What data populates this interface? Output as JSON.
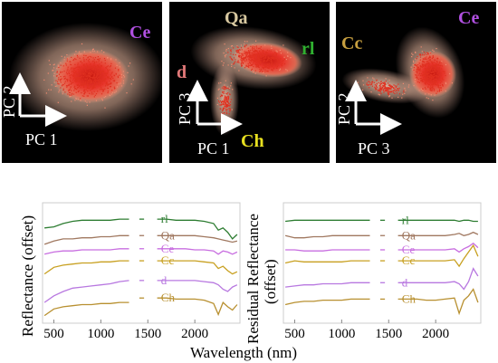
{
  "colors": {
    "rl": "#2e7d32",
    "Qa": "#a07860",
    "Ce": "#c86ee0",
    "Cc": "#c8a020",
    "d": "#b878e0",
    "Ch": "#b89030",
    "scatter_core": "#e8342a",
    "scatter_halo": "#f4c8b0",
    "panel_bg": "#000000",
    "axis_arrow": "#ffffff",
    "label_Ce": "#b050e0",
    "label_Qa": "#d8c8a0",
    "label_rl": "#30b030",
    "label_d": "#e07878",
    "label_Ch": "#e8e020",
    "label_Cc": "#c8a040"
  },
  "scatter_panels": [
    {
      "x_axis_label": "PC 1",
      "y_axis_label": "PC 2",
      "class_labels": [
        {
          "text": "Ce",
          "color_key": "label_Ce"
        }
      ]
    },
    {
      "x_axis_label": "PC 1",
      "y_axis_label": "PC 3",
      "class_labels": [
        {
          "text": "Qa",
          "color_key": "label_Qa"
        },
        {
          "text": "rl",
          "color_key": "label_rl"
        },
        {
          "text": "d",
          "color_key": "label_d"
        },
        {
          "text": "Ch",
          "color_key": "label_Ch"
        }
      ]
    },
    {
      "x_axis_label": "PC 3",
      "y_axis_label": "PC 2",
      "class_labels": [
        {
          "text": "Ce",
          "color_key": "label_Ce"
        },
        {
          "text": "Cc",
          "color_key": "label_Cc"
        }
      ]
    }
  ],
  "chart_data": [
    {
      "type": "line",
      "ylabel": "Reflectance (offset)",
      "xlabel": "Wavelength (nm)",
      "x_ticks": [
        500,
        1000,
        1500,
        2000
      ],
      "xlim": [
        380,
        2480
      ],
      "ylim": [
        0,
        1
      ],
      "grid": false,
      "series": [
        {
          "name": "rl",
          "color_key": "rl",
          "x": [
            400,
            500,
            600,
            700,
            800,
            900,
            1000,
            1100,
            1200,
            1300,
            1450,
            1600,
            1700,
            1800,
            1900,
            2000,
            2100,
            2200,
            2250,
            2300,
            2350,
            2400,
            2450
          ],
          "y": [
            0.82,
            0.83,
            0.86,
            0.88,
            0.89,
            0.89,
            0.89,
            0.89,
            0.9,
            0.9,
            0.9,
            0.9,
            0.9,
            0.89,
            0.89,
            0.89,
            0.88,
            0.86,
            0.8,
            0.82,
            0.78,
            0.72,
            0.76
          ]
        },
        {
          "name": "Qa",
          "color_key": "Qa",
          "x": [
            400,
            500,
            600,
            700,
            800,
            900,
            1000,
            1100,
            1200,
            1300,
            1450,
            1600,
            1700,
            1800,
            1900,
            2000,
            2100,
            2200,
            2250,
            2300,
            2350,
            2400,
            2450
          ],
          "y": [
            0.67,
            0.7,
            0.72,
            0.72,
            0.73,
            0.73,
            0.74,
            0.74,
            0.75,
            0.75,
            0.75,
            0.75,
            0.75,
            0.75,
            0.75,
            0.75,
            0.74,
            0.73,
            0.72,
            0.71,
            0.7,
            0.69,
            0.7
          ]
        },
        {
          "name": "Ce",
          "color_key": "Ce",
          "x": [
            400,
            500,
            600,
            700,
            800,
            900,
            1000,
            1100,
            1200,
            1300,
            1450,
            1600,
            1700,
            1800,
            1900,
            2000,
            2100,
            2200,
            2250,
            2300,
            2350,
            2400,
            2450
          ],
          "y": [
            0.58,
            0.6,
            0.61,
            0.61,
            0.62,
            0.62,
            0.62,
            0.62,
            0.63,
            0.63,
            0.63,
            0.63,
            0.63,
            0.63,
            0.63,
            0.62,
            0.62,
            0.61,
            0.58,
            0.61,
            0.6,
            0.58,
            0.6
          ]
        },
        {
          "name": "Cc",
          "color_key": "Cc",
          "x": [
            400,
            500,
            600,
            700,
            800,
            900,
            1000,
            1100,
            1200,
            1300,
            1450,
            1600,
            1700,
            1800,
            1900,
            2000,
            2100,
            2200,
            2250,
            2300,
            2350,
            2400,
            2450
          ],
          "y": [
            0.4,
            0.46,
            0.48,
            0.49,
            0.5,
            0.5,
            0.51,
            0.51,
            0.52,
            0.52,
            0.52,
            0.52,
            0.52,
            0.52,
            0.52,
            0.52,
            0.51,
            0.5,
            0.45,
            0.47,
            0.43,
            0.4,
            0.42
          ]
        },
        {
          "name": "d",
          "color_key": "d",
          "x": [
            400,
            500,
            600,
            700,
            800,
            900,
            1000,
            1100,
            1200,
            1300,
            1450,
            1600,
            1700,
            1800,
            1900,
            2000,
            2100,
            2200,
            2250,
            2300,
            2350,
            2400,
            2450
          ],
          "y": [
            0.14,
            0.2,
            0.24,
            0.27,
            0.28,
            0.29,
            0.3,
            0.31,
            0.33,
            0.34,
            0.34,
            0.34,
            0.34,
            0.34,
            0.34,
            0.34,
            0.33,
            0.32,
            0.3,
            0.26,
            0.24,
            0.28,
            0.3
          ]
        },
        {
          "name": "Ch",
          "color_key": "Ch",
          "x": [
            400,
            500,
            600,
            700,
            800,
            900,
            1000,
            1100,
            1200,
            1300,
            1450,
            1600,
            1700,
            1800,
            1900,
            2000,
            2100,
            2200,
            2250,
            2300,
            2350,
            2400,
            2450
          ],
          "y": [
            0.02,
            0.08,
            0.1,
            0.11,
            0.12,
            0.12,
            0.13,
            0.13,
            0.14,
            0.14,
            0.17,
            0.18,
            0.18,
            0.17,
            0.17,
            0.17,
            0.16,
            0.13,
            0.03,
            0.14,
            0.1,
            0.07,
            0.12
          ]
        }
      ],
      "labels_at_x": 1640
    },
    {
      "type": "line",
      "ylabel": "Residual Reflectance\n(offset)",
      "xlabel": "Wavelength (nm)",
      "x_ticks": [
        500,
        1000,
        1500,
        2000
      ],
      "xlim": [
        380,
        2480
      ],
      "ylim": [
        0,
        1
      ],
      "grid": false,
      "series": [
        {
          "name": "rl",
          "color_key": "rl",
          "x": [
            400,
            500,
            600,
            700,
            800,
            900,
            1000,
            1100,
            1200,
            1300,
            1450,
            1600,
            1700,
            1800,
            1900,
            2000,
            2100,
            2200,
            2250,
            2300,
            2350,
            2400,
            2450
          ],
          "y": [
            0.88,
            0.89,
            0.89,
            0.89,
            0.89,
            0.89,
            0.89,
            0.89,
            0.89,
            0.89,
            0.89,
            0.89,
            0.89,
            0.89,
            0.89,
            0.89,
            0.89,
            0.89,
            0.88,
            0.89,
            0.89,
            0.88,
            0.88
          ]
        },
        {
          "name": "Qa",
          "color_key": "Qa",
          "x": [
            400,
            500,
            600,
            700,
            800,
            900,
            1000,
            1100,
            1200,
            1300,
            1450,
            1600,
            1700,
            1800,
            1900,
            2000,
            2100,
            2200,
            2250,
            2300,
            2350,
            2400,
            2450
          ],
          "y": [
            0.75,
            0.73,
            0.73,
            0.74,
            0.74,
            0.75,
            0.75,
            0.75,
            0.75,
            0.75,
            0.75,
            0.75,
            0.75,
            0.75,
            0.75,
            0.75,
            0.75,
            0.76,
            0.77,
            0.75,
            0.76,
            0.78,
            0.76
          ]
        },
        {
          "name": "Ce",
          "color_key": "Ce",
          "x": [
            400,
            500,
            600,
            700,
            800,
            900,
            1000,
            1100,
            1200,
            1300,
            1450,
            1600,
            1700,
            1800,
            1900,
            2000,
            2100,
            2200,
            2250,
            2300,
            2350,
            2400,
            2450
          ],
          "y": [
            0.62,
            0.62,
            0.61,
            0.61,
            0.61,
            0.62,
            0.62,
            0.62,
            0.62,
            0.62,
            0.62,
            0.62,
            0.62,
            0.62,
            0.62,
            0.62,
            0.62,
            0.63,
            0.6,
            0.63,
            0.65,
            0.68,
            0.64
          ]
        },
        {
          "name": "Cc",
          "color_key": "Cc",
          "x": [
            400,
            500,
            600,
            700,
            800,
            900,
            1000,
            1100,
            1200,
            1300,
            1450,
            1600,
            1700,
            1800,
            1900,
            2000,
            2100,
            2200,
            2250,
            2300,
            2350,
            2400,
            2450
          ],
          "y": [
            0.5,
            0.52,
            0.51,
            0.51,
            0.51,
            0.51,
            0.51,
            0.52,
            0.52,
            0.52,
            0.52,
            0.52,
            0.52,
            0.52,
            0.52,
            0.52,
            0.52,
            0.53,
            0.47,
            0.54,
            0.6,
            0.66,
            0.56
          ]
        },
        {
          "name": "d",
          "color_key": "d",
          "x": [
            400,
            500,
            600,
            700,
            800,
            900,
            1000,
            1100,
            1200,
            1300,
            1450,
            1600,
            1700,
            1800,
            1900,
            2000,
            2100,
            2200,
            2250,
            2300,
            2350,
            2400,
            2450
          ],
          "y": [
            0.28,
            0.29,
            0.3,
            0.3,
            0.31,
            0.31,
            0.31,
            0.32,
            0.32,
            0.32,
            0.32,
            0.32,
            0.32,
            0.32,
            0.32,
            0.32,
            0.32,
            0.33,
            0.31,
            0.26,
            0.33,
            0.45,
            0.38
          ]
        },
        {
          "name": "Ch",
          "color_key": "Ch",
          "x": [
            400,
            500,
            600,
            700,
            800,
            900,
            1000,
            1100,
            1200,
            1300,
            1450,
            1600,
            1700,
            1800,
            1900,
            2000,
            2100,
            2200,
            2250,
            2300,
            2350,
            2400,
            2450
          ],
          "y": [
            0.12,
            0.14,
            0.15,
            0.15,
            0.16,
            0.16,
            0.16,
            0.17,
            0.17,
            0.17,
            0.17,
            0.17,
            0.17,
            0.17,
            0.16,
            0.16,
            0.17,
            0.18,
            0.04,
            0.16,
            0.2,
            0.26,
            0.14
          ]
        }
      ],
      "labels_at_x": 1640
    }
  ]
}
